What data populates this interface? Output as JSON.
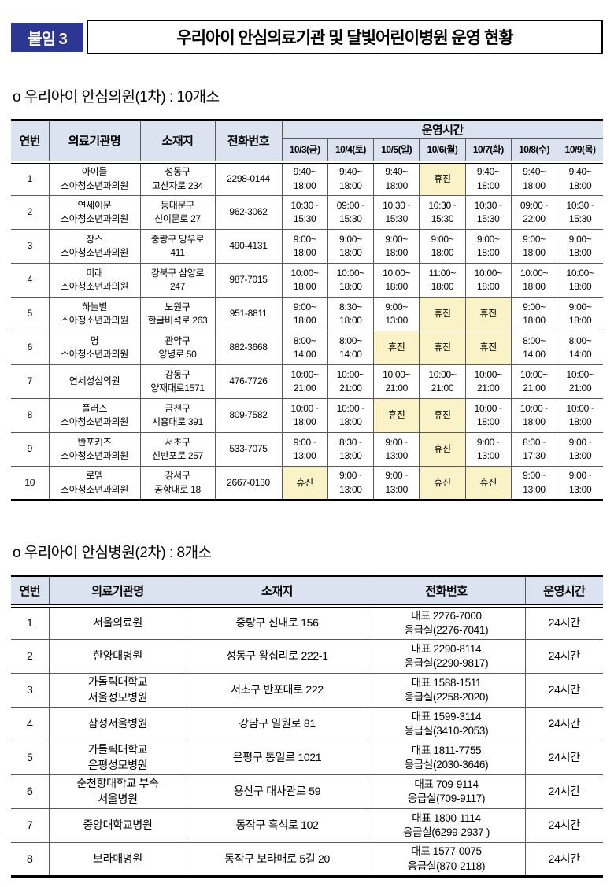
{
  "page": {
    "tag_label": "붙임 3",
    "title": "우리아이 안심의료기관 및 달빛어린이병원 운영 현황"
  },
  "colors": {
    "accent_navy": "#2c3791",
    "table_header_bg": "#dce3f0",
    "closed_cell_bg": "#faf3c8"
  },
  "section1": {
    "heading": "o  우리아이 안심의원(1차) : 10개소",
    "table": {
      "headers": {
        "no": "연번",
        "name": "의료기관명",
        "address": "소재지",
        "phone": "전화번호",
        "hours_group": "운영시간"
      },
      "date_columns": [
        "10/3(금)",
        "10/4(토)",
        "10/5(일)",
        "10/6(월)",
        "10/7(화)",
        "10/8(수)",
        "10/9(목)"
      ],
      "closed_label": "휴진",
      "rows": [
        {
          "no": "1",
          "name": "아이들\n소아청소년과의원",
          "address": "성동구\n고산자로 234",
          "phone": "2298-0144",
          "hours": [
            "9:40~\n18:00",
            "9:40~\n18:00",
            "9:40~\n18:00",
            "휴진",
            "9:40~\n18:00",
            "9:40~\n18:00",
            "9:40~\n18:00"
          ]
        },
        {
          "no": "2",
          "name": "연세이문\n소아청소년과의원",
          "address": "동대문구\n신이문로 27",
          "phone": "962-3062",
          "hours": [
            "10:30~\n15:30",
            "09:00~\n15:30",
            "10:30~\n15:30",
            "10:30~\n15:30",
            "10:30~\n15:30",
            "09:00~\n22:00",
            "10:30~\n15:30"
          ]
        },
        {
          "no": "3",
          "name": "장스\n소아청소년과의원",
          "address": "중랑구 망우로\n411",
          "phone": "490-4131",
          "hours": [
            "9:00~\n18:00",
            "9:00~\n18:00",
            "9:00~\n18:00",
            "9:00~\n18:00",
            "9:00~\n18:00",
            "9:00~\n18:00",
            "9:00~\n18:00"
          ]
        },
        {
          "no": "4",
          "name": "미래\n소아청소년과의원",
          "address": "강북구 삼양로\n247",
          "phone": "987-7015",
          "hours": [
            "10:00~\n18:00",
            "10:00~\n18:00",
            "10:00~\n18:00",
            "11:00~\n18:00",
            "10:00~\n18:00",
            "10:00~\n18:00",
            "10:00~\n18:00"
          ]
        },
        {
          "no": "5",
          "name": "하늘별\n소아청소년과의원",
          "address": "노원구\n한글비석로 263",
          "phone": "951-8811",
          "hours": [
            "9:00~\n18:00",
            "8:30~\n18:00",
            "9:00~\n13:00",
            "휴진",
            "휴진",
            "9:00~\n18:00",
            "9:00~\n18:00"
          ]
        },
        {
          "no": "6",
          "name": "명\n소아청소년과의원",
          "address": "관악구\n양녕로 50",
          "phone": "882-3668",
          "hours": [
            "8:00~\n14:00",
            "8:00~\n14:00",
            "휴진",
            "휴진",
            "휴진",
            "8:00~\n14:00",
            "8:00~\n14:00"
          ]
        },
        {
          "no": "7",
          "name": "연세성심의원",
          "address": "강동구\n양재대로1571",
          "phone": "476-7726",
          "hours": [
            "10:00~\n21:00",
            "10:00~\n21:00",
            "10:00~\n21:00",
            "10:00~\n21:00",
            "10:00~\n21:00",
            "10:00~\n21:00",
            "10:00~\n21:00"
          ]
        },
        {
          "no": "8",
          "name": "플러스\n소아청소년과의원",
          "address": "금천구\n시흥대로 391",
          "phone": "809-7582",
          "hours": [
            "10:00~\n18:00",
            "10:00~\n18:00",
            "휴진",
            "휴진",
            "10:00~\n18:00",
            "10:00~\n18:00",
            "10:00~\n18:00"
          ]
        },
        {
          "no": "9",
          "name": "반포키즈\n소아청소년과의원",
          "address": "서초구\n신반포로 257",
          "phone": "533-7075",
          "hours": [
            "9:00~\n13:00",
            "8:30~\n13:00",
            "9:00~\n13:00",
            "휴진",
            "9:00~\n13:00",
            "8:30~\n17:30",
            "9:00~\n13:00"
          ]
        },
        {
          "no": "10",
          "name": "로뎀\n소아청소년과의원",
          "address": "강서구\n공항대로 18",
          "phone": "2667-0130",
          "hours": [
            "휴진",
            "9:00~\n13:00",
            "9:00~\n13:00",
            "휴진",
            "휴진",
            "9:00~\n13:00",
            "9:00~\n13:00"
          ]
        }
      ]
    }
  },
  "section2": {
    "heading": "o  우리아이 안심병원(2차) : 8개소",
    "table": {
      "headers": {
        "no": "연번",
        "name": "의료기관명",
        "address": "소재지",
        "phone": "전화번호",
        "hours": "운영시간"
      },
      "rows": [
        {
          "no": "1",
          "name": "서울의료원",
          "address": "중랑구 신내로 156",
          "phone": "대표 2276-7000\n응급실(2276-7041)",
          "hours": "24시간"
        },
        {
          "no": "2",
          "name": "한양대병원",
          "address": "성동구 왕십리로 222-1",
          "phone": "대표 2290-8114\n응급실(2290-9817)",
          "hours": "24시간"
        },
        {
          "no": "3",
          "name": "가톨릭대학교\n서울성모병원",
          "address": "서초구 반포대로 222",
          "phone": "대표 1588-1511\n응급실(2258-2020)",
          "hours": "24시간"
        },
        {
          "no": "4",
          "name": "삼성서울병원",
          "address": "강남구 일원로 81",
          "phone": "대표 1599-3114\n응급실(3410-2053)",
          "hours": "24시간"
        },
        {
          "no": "5",
          "name": "가톨릭대학교\n은평성모병원",
          "address": "은평구 통일로 1021",
          "phone": "대표 1811-7755\n응급실(2030-3646)",
          "hours": "24시간"
        },
        {
          "no": "6",
          "name": "순천향대학교 부속\n서울병원",
          "address": "용산구 대사관로 59",
          "phone": "대표 709-9114\n응급실(709-9117)",
          "hours": "24시간"
        },
        {
          "no": "7",
          "name": "중앙대학교병원",
          "address": "동작구 흑석로 102",
          "phone": "대표 1800-1114\n응급실(6299-2937 )",
          "hours": "24시간"
        },
        {
          "no": "8",
          "name": "보라매병원",
          "address": "동작구 보라매로 5길 20",
          "phone": "대표 1577-0075\n응급실(870-2118)",
          "hours": "24시간"
        }
      ]
    }
  }
}
